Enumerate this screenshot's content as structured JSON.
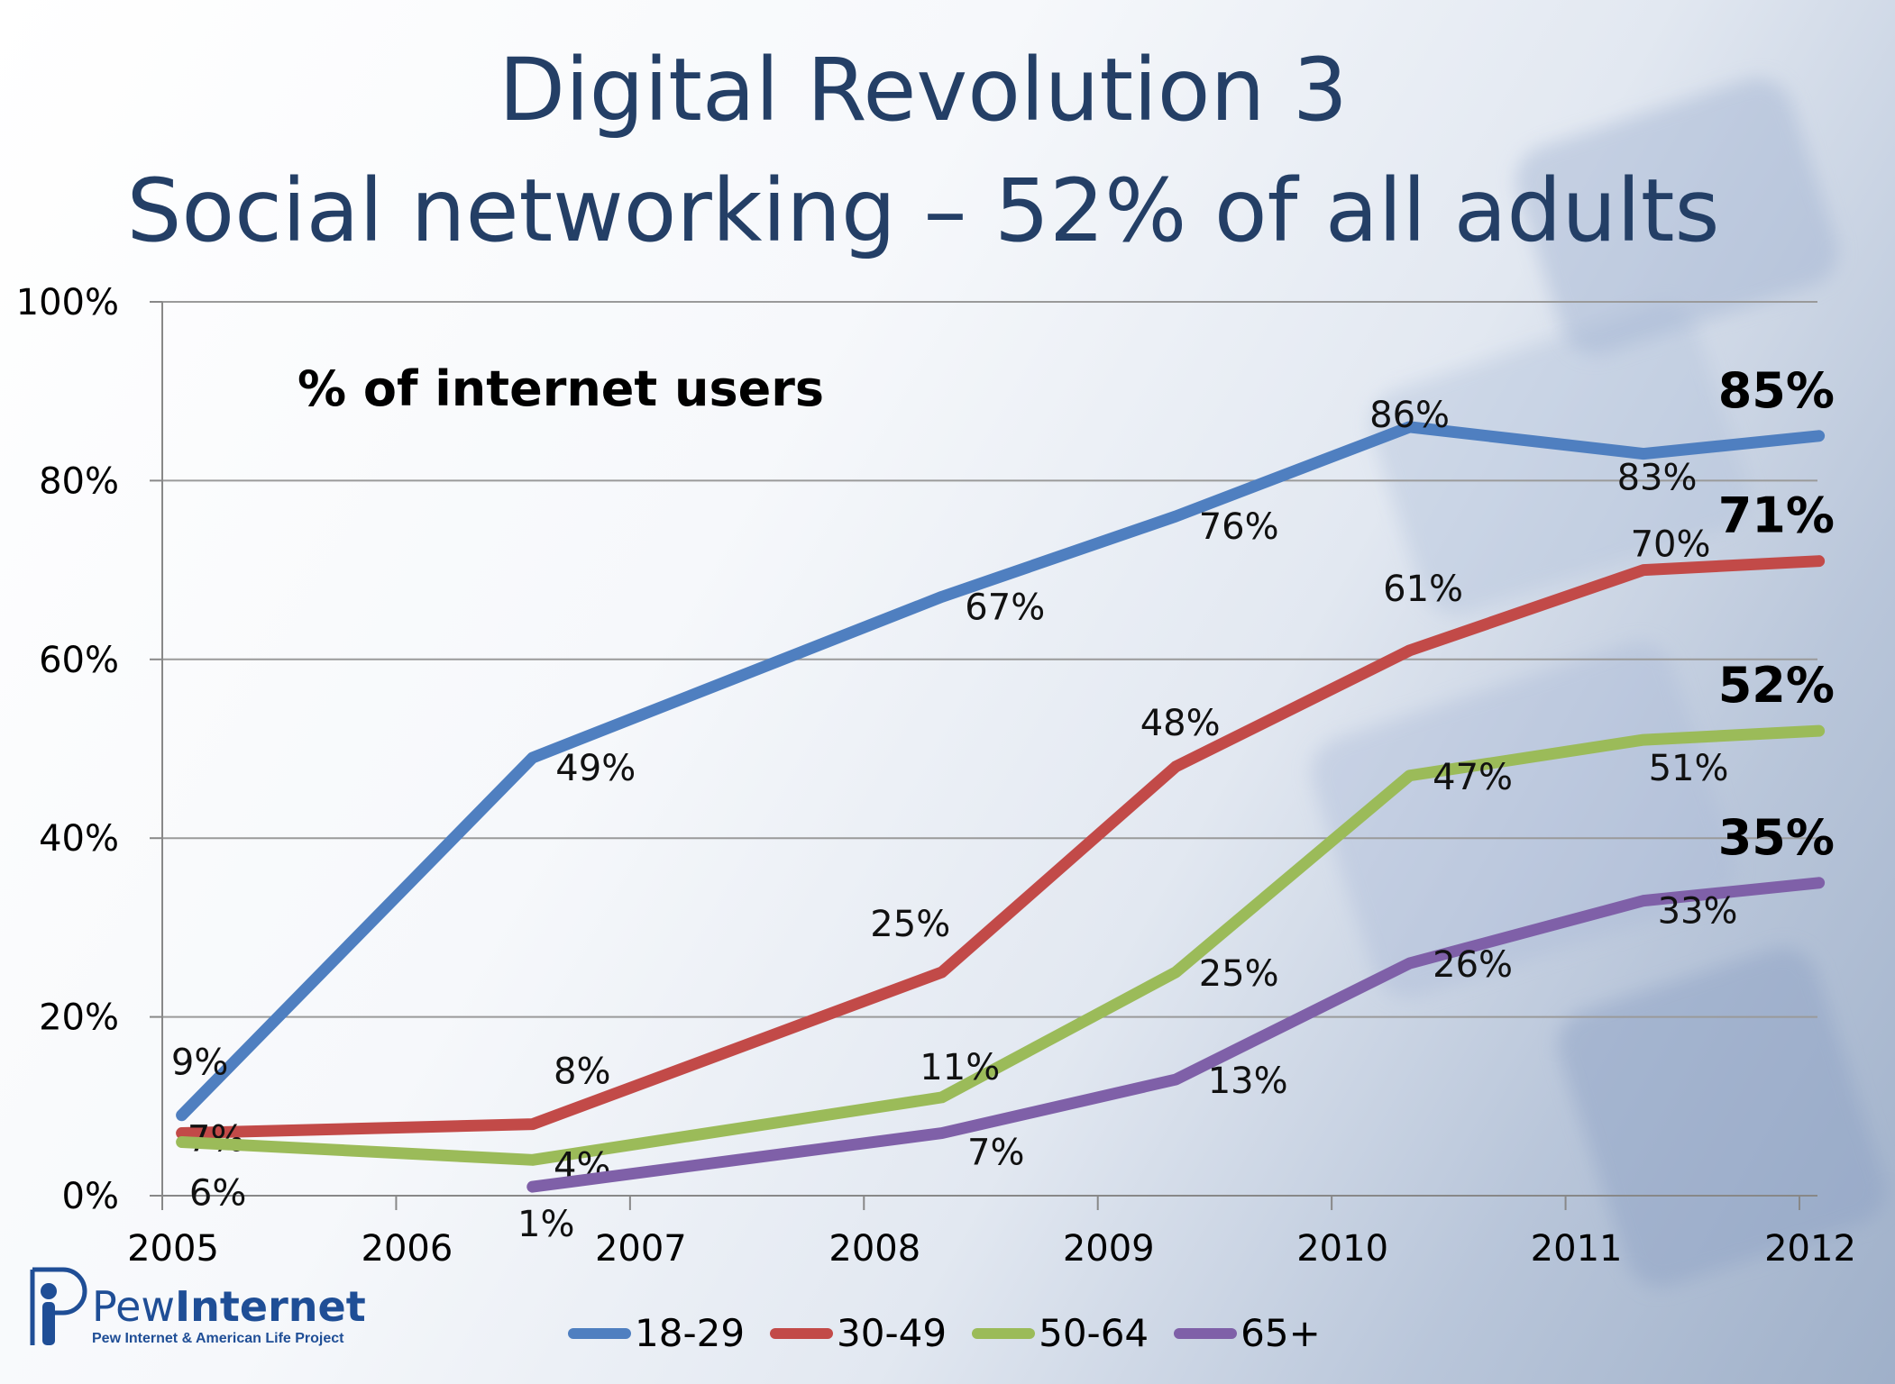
{
  "header": {
    "title_line1": "Digital Revolution 3",
    "title_line2": "Social networking – 52% of all adults"
  },
  "note": "% of internet users",
  "logo": {
    "name_part1": "Pew",
    "name_part2": "Internet",
    "subtitle": "Pew Internet & American Life Project"
  },
  "colors": {
    "title": "#243f66",
    "18-29": "#4f7fc0",
    "30-49": "#c24a48",
    "50-64": "#9bbb59",
    "65+": "#7f60a8"
  },
  "chart_data": {
    "type": "line",
    "title": "",
    "xlabel": "",
    "ylabel": "",
    "xlim": [
      2005,
      2012
    ],
    "ylim": [
      0,
      100
    ],
    "x_ticks": [
      2005,
      2006,
      2007,
      2008,
      2009,
      2010,
      2011,
      2012
    ],
    "x_tick_labels": [
      "2005",
      "2006",
      "2007",
      "2008",
      "2009",
      "2010",
      "2011",
      "2012"
    ],
    "y_ticks": [
      0,
      20,
      40,
      60,
      80,
      100
    ],
    "y_tick_labels": [
      "0%",
      "20%",
      "40%",
      "60%",
      "80%",
      "100%"
    ],
    "grid": true,
    "legend_position": "bottom",
    "series": [
      {
        "name": "18-29",
        "x": [
          "2005-02",
          "2006-08",
          "2008-05",
          "2009-05",
          "2010-05",
          "2011-05",
          "2012-02"
        ],
        "values": [
          9,
          49,
          67,
          76,
          86,
          83,
          85
        ],
        "labels": [
          "9%",
          "49%",
          "67%",
          "76%",
          "86%",
          "83%",
          "85%"
        ]
      },
      {
        "name": "30-49",
        "x": [
          "2005-02",
          "2006-08",
          "2008-05",
          "2009-05",
          "2010-05",
          "2011-05",
          "2012-02"
        ],
        "values": [
          7,
          8,
          25,
          48,
          61,
          70,
          71
        ],
        "labels": [
          "7%",
          "8%",
          "25%",
          "48%",
          "61%",
          "70%",
          "71%"
        ]
      },
      {
        "name": "50-64",
        "x": [
          "2005-02",
          "2006-08",
          "2008-05",
          "2009-05",
          "2010-05",
          "2011-05",
          "2012-02"
        ],
        "values": [
          6,
          4,
          11,
          25,
          47,
          51,
          52
        ],
        "labels": [
          "6%",
          "4%",
          "11%",
          "25%",
          "47%",
          "51%",
          "52%"
        ]
      },
      {
        "name": "65+",
        "x": [
          "2006-08",
          "2008-05",
          "2009-05",
          "2010-05",
          "2011-05",
          "2012-02"
        ],
        "values": [
          1,
          7,
          13,
          26,
          33,
          35
        ],
        "labels": [
          "1%",
          "7%",
          "13%",
          "26%",
          "33%",
          "35%"
        ]
      }
    ]
  }
}
